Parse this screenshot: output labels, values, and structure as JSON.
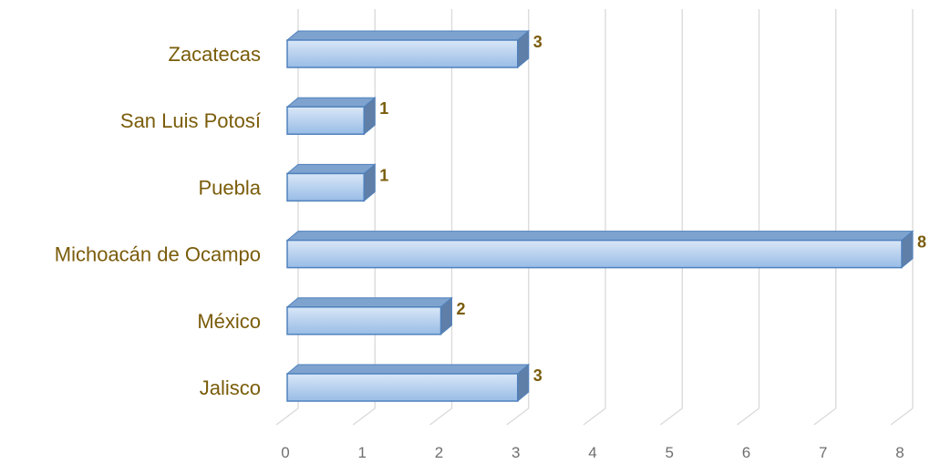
{
  "chart_data": {
    "type": "bar",
    "orientation": "horizontal",
    "categories": [
      "Zacatecas",
      "San Luis Potosí",
      "Puebla",
      "Michoacán de Ocampo",
      "México",
      "Jalisco"
    ],
    "values": [
      3,
      1,
      1,
      8,
      2,
      3
    ],
    "xlim": [
      0,
      8
    ],
    "x_ticks": [
      "0",
      "1",
      "2",
      "3",
      "4",
      "5",
      "6",
      "7",
      "8"
    ],
    "grid": true,
    "style": "3d",
    "data_labels": true,
    "colors": {
      "bar_top": "#d9e7f7",
      "bar_bottom": "#98bce6",
      "bar_edge": "#4f81bd",
      "bar_side": "#5f7fa8",
      "label": "#7a5c0a",
      "tick": "#6f6f6f",
      "grid": "#d9d9d9"
    }
  }
}
